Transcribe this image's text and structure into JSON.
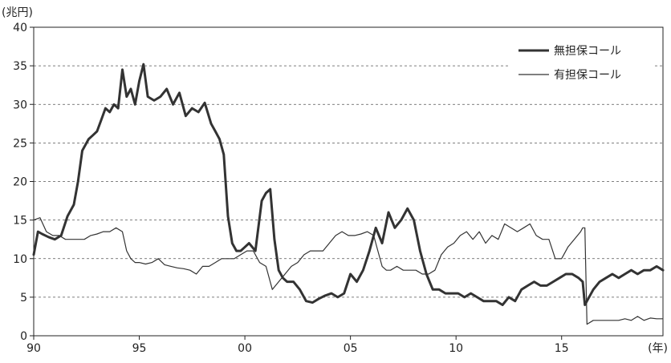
{
  "chart_data": {
    "type": "line",
    "title": "",
    "xlabel": "",
    "ylabel": "",
    "y_unit_label": "(兆円)",
    "x_unit_label": "(年)",
    "xlim": [
      1990,
      2019.8
    ],
    "ylim": [
      0,
      40
    ],
    "yticks": [
      0,
      5,
      10,
      15,
      20,
      25,
      30,
      35,
      40
    ],
    "y_tick_labels": [
      "0",
      "5",
      "10",
      "15",
      "20",
      "25",
      "30",
      "35",
      "40"
    ],
    "xticks": [
      1990,
      1995,
      2000,
      2005,
      2010,
      2015
    ],
    "x_tick_labels": [
      "90",
      "95",
      "00",
      "05",
      "10",
      "15"
    ],
    "grid": "horizontal dashed",
    "legend_position": "top-right",
    "series": [
      {
        "name": "無担保コール",
        "style": "thick",
        "color": "#333333",
        "x": [
          1990.0,
          1990.2,
          1990.4,
          1990.7,
          1991.0,
          1991.3,
          1991.6,
          1991.9,
          1992.1,
          1992.3,
          1992.6,
          1992.8,
          1993.0,
          1993.2,
          1993.4,
          1993.6,
          1993.8,
          1994.0,
          1994.2,
          1994.4,
          1994.6,
          1994.8,
          1995.0,
          1995.2,
          1995.4,
          1995.7,
          1996.0,
          1996.3,
          1996.6,
          1996.9,
          1997.2,
          1997.5,
          1997.8,
          1998.1,
          1998.4,
          1998.6,
          1998.8,
          1999.0,
          1999.2,
          1999.4,
          1999.6,
          1999.8,
          2000.0,
          2000.2,
          2000.5,
          2000.8,
          2001.0,
          2001.2,
          2001.4,
          2001.6,
          2001.8,
          2002.0,
          2002.3,
          2002.6,
          2002.9,
          2003.2,
          2003.5,
          2003.8,
          2004.1,
          2004.4,
          2004.7,
          2005.0,
          2005.3,
          2005.6,
          2005.9,
          2006.2,
          2006.5,
          2006.8,
          2007.1,
          2007.4,
          2007.7,
          2008.0,
          2008.3,
          2008.6,
          2008.9,
          2009.2,
          2009.5,
          2009.8,
          2010.1,
          2010.4,
          2010.7,
          2011.0,
          2011.3,
          2011.6,
          2011.9,
          2012.2,
          2012.5,
          2012.8,
          2013.1,
          2013.4,
          2013.7,
          2014.0,
          2014.3,
          2014.6,
          2014.9,
          2015.2,
          2015.5,
          2015.8,
          2016.0,
          2016.1,
          2016.2,
          2016.5,
          2016.8,
          2017.1,
          2017.4,
          2017.7,
          2018.0,
          2018.3,
          2018.6,
          2018.9,
          2019.2,
          2019.5,
          2019.8
        ],
        "values": [
          10.5,
          13.5,
          13.2,
          12.8,
          12.5,
          13.0,
          15.5,
          17.0,
          20.0,
          24.0,
          25.5,
          26.0,
          26.5,
          28.0,
          29.5,
          29.0,
          30.0,
          29.5,
          34.5,
          31.0,
          32.0,
          30.0,
          33.0,
          35.2,
          31.0,
          30.5,
          31.0,
          32.0,
          30.0,
          31.5,
          28.5,
          29.5,
          29.0,
          30.2,
          27.5,
          26.5,
          25.5,
          23.5,
          15.5,
          12.0,
          11.0,
          11.0,
          11.5,
          12.0,
          11.0,
          17.5,
          18.5,
          19.0,
          12.5,
          8.5,
          7.5,
          7.0,
          7.0,
          6.0,
          4.5,
          4.3,
          4.8,
          5.2,
          5.5,
          5.0,
          5.5,
          8.0,
          7.0,
          8.5,
          11.0,
          14.0,
          12.0,
          16.0,
          14.0,
          15.0,
          16.5,
          15.0,
          11.0,
          8.0,
          6.0,
          6.0,
          5.5,
          5.5,
          5.5,
          5.0,
          5.5,
          5.0,
          4.5,
          4.5,
          4.5,
          4.0,
          5.0,
          4.5,
          6.0,
          6.5,
          7.0,
          6.5,
          6.5,
          7.0,
          7.5,
          8.0,
          8.0,
          7.5,
          7.0,
          4.0,
          4.5,
          6.0,
          7.0,
          7.5,
          8.0,
          7.5,
          8.0,
          8.5,
          8.0,
          8.5,
          8.5,
          9.0,
          8.5
        ]
      },
      {
        "name": "有担保コール",
        "style": "thin",
        "color": "#333333",
        "x": [
          1990.0,
          1990.3,
          1990.6,
          1990.9,
          1991.2,
          1991.5,
          1991.8,
          1992.1,
          1992.4,
          1992.7,
          1993.0,
          1993.3,
          1993.6,
          1993.9,
          1994.2,
          1994.4,
          1994.6,
          1994.8,
          1995.0,
          1995.3,
          1995.6,
          1995.9,
          1996.2,
          1996.5,
          1996.8,
          1997.1,
          1997.4,
          1997.7,
          1998.0,
          1998.3,
          1998.6,
          1998.9,
          1999.2,
          1999.5,
          1999.8,
          2000.1,
          2000.4,
          2000.7,
          2001.0,
          2001.3,
          2001.6,
          2001.9,
          2002.2,
          2002.5,
          2002.8,
          2003.1,
          2003.4,
          2003.7,
          2004.0,
          2004.3,
          2004.6,
          2004.9,
          2005.2,
          2005.5,
          2005.8,
          2006.1,
          2006.3,
          2006.5,
          2006.7,
          2006.9,
          2007.2,
          2007.5,
          2007.8,
          2008.1,
          2008.4,
          2008.7,
          2009.0,
          2009.3,
          2009.6,
          2009.9,
          2010.2,
          2010.5,
          2010.8,
          2011.1,
          2011.4,
          2011.7,
          2012.0,
          2012.3,
          2012.6,
          2012.9,
          2013.2,
          2013.5,
          2013.8,
          2014.1,
          2014.4,
          2014.7,
          2015.0,
          2015.3,
          2015.6,
          2015.9,
          2016.0,
          2016.1,
          2016.2,
          2016.5,
          2016.8,
          2017.1,
          2017.4,
          2017.7,
          2018.0,
          2018.3,
          2018.6,
          2018.9,
          2019.2,
          2019.5,
          2019.8
        ],
        "values": [
          15.0,
          15.3,
          13.5,
          13.0,
          13.0,
          12.5,
          12.5,
          12.5,
          12.5,
          13.0,
          13.2,
          13.5,
          13.5,
          14.0,
          13.5,
          11.0,
          10.0,
          9.5,
          9.5,
          9.3,
          9.5,
          10.0,
          9.2,
          9.0,
          8.8,
          8.7,
          8.5,
          8.0,
          9.0,
          9.0,
          9.5,
          10.0,
          10.0,
          10.0,
          10.5,
          11.0,
          11.0,
          9.5,
          9.0,
          6.0,
          7.0,
          8.0,
          9.0,
          9.5,
          10.5,
          11.0,
          11.0,
          11.0,
          12.0,
          13.0,
          13.5,
          13.0,
          13.0,
          13.2,
          13.5,
          13.0,
          11.0,
          9.0,
          8.5,
          8.5,
          9.0,
          8.5,
          8.5,
          8.5,
          8.0,
          8.0,
          8.5,
          10.5,
          11.5,
          12.0,
          13.0,
          13.5,
          12.5,
          13.5,
          12.0,
          13.0,
          12.5,
          14.5,
          14.0,
          13.5,
          14.0,
          14.5,
          13.0,
          12.5,
          12.5,
          10.0,
          10.0,
          11.5,
          12.5,
          13.5,
          14.0,
          14.0,
          1.5,
          2.0,
          2.0,
          2.0,
          2.0,
          2.0,
          2.2,
          2.0,
          2.5,
          2.0,
          2.3,
          2.2,
          2.2
        ]
      }
    ]
  }
}
